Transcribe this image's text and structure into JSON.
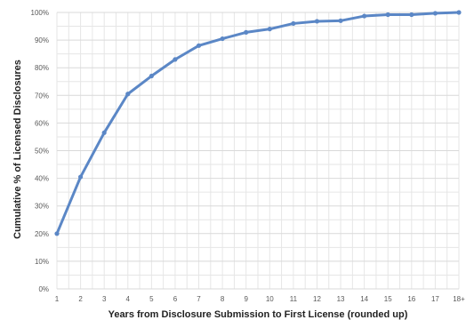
{
  "chart_data": {
    "type": "line",
    "title": "",
    "xlabel": "Years from Disclosure Submission to First License (rounded up)",
    "ylabel": "Cumulative % of Licensed Disclosures",
    "categories": [
      "1",
      "2",
      "3",
      "4",
      "5",
      "6",
      "7",
      "8",
      "9",
      "10",
      "11",
      "12",
      "13",
      "14",
      "15",
      "16",
      "17",
      "18+"
    ],
    "series": [
      {
        "values": [
          20,
          40.5,
          56.5,
          70.5,
          77,
          83,
          88,
          90.5,
          92.8,
          94,
          96,
          96.8,
          97,
          98.7,
          99.2,
          99.2,
          99.7,
          100
        ],
        "color": "#5b87c6"
      }
    ],
    "ylim": [
      0,
      100
    ],
    "yticks": [
      "0%",
      "10%",
      "20%",
      "30%",
      "40%",
      "50%",
      "60%",
      "70%",
      "80%",
      "90%",
      "100%"
    ],
    "grid": true,
    "legend": "none"
  }
}
